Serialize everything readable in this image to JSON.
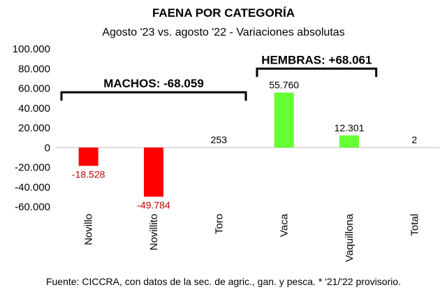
{
  "chart_data": {
    "type": "bar",
    "title": "FAENA POR CATEGORÍA",
    "subtitle": "Agosto '23 vs. agosto '22 - Variaciones absolutas",
    "categories": [
      "Novillo",
      "Novillito",
      "Toro",
      "Vaca",
      "Vaquillona",
      "Total"
    ],
    "values": [
      -18528,
      -49784,
      253,
      55760,
      12301,
      2
    ],
    "value_labels": [
      "-18.528",
      "-49.784",
      "253",
      "55.760",
      "12.301",
      "2"
    ],
    "yticks": [
      100000,
      80000,
      60000,
      40000,
      20000,
      0,
      -20000,
      -40000,
      -60000
    ],
    "ytick_labels": [
      "100.000",
      "80.000",
      "60.000",
      "40.000",
      "20.000",
      "0",
      "-20.000",
      "-40.000",
      "-60.000"
    ],
    "ylim": [
      -60000,
      100000
    ],
    "grid": false,
    "colors": {
      "negative": "#ff0000",
      "positive": "#66ff33",
      "negative_label": "#c00000",
      "positive_label": "#000000",
      "axis": "#bfbfbf"
    },
    "groups": [
      {
        "label": "MACHOS: -68.059",
        "from_category": 0,
        "to_category": 2,
        "bracket_level": 56000
      },
      {
        "label": "HEMBRAS: +68.061",
        "from_category": 3,
        "to_category": 4,
        "bracket_level": 80000
      }
    ],
    "source": "Fuente: CICCRA, con datos de la sec. de agric., gan. y pesca. * '21/'22 provisorio."
  }
}
